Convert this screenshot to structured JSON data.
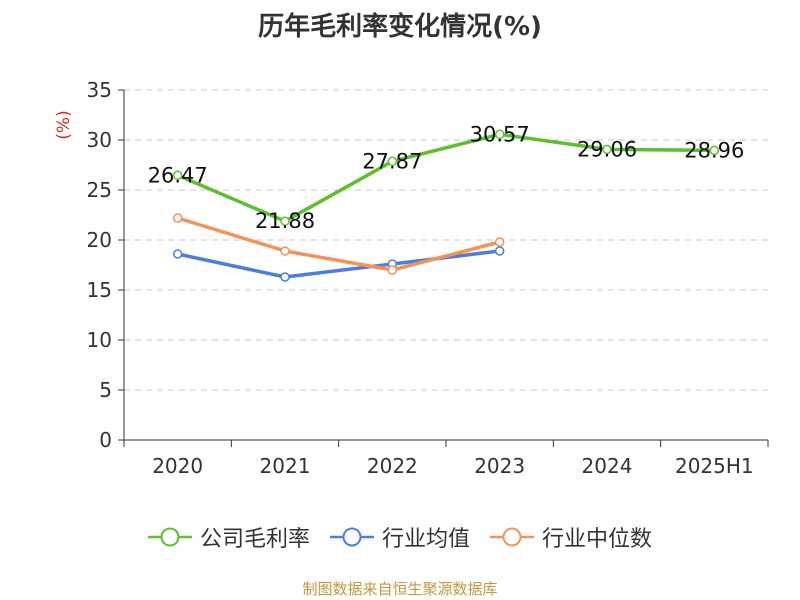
{
  "title": "历年毛利率变化情况(%)",
  "source": "制图数据来自恒生聚源数据库",
  "colors": {
    "company": "#5cc02c",
    "industry_avg": "#4c7ee0",
    "industry_median": "#f39358",
    "ylabel": "#d62728"
  },
  "chart_data": {
    "type": "line",
    "title": "历年毛利率变化情况(%)",
    "xlabel": "",
    "ylabel": "(%)",
    "ylim": [
      0,
      35
    ],
    "yticks": [
      0,
      5,
      10,
      15,
      20,
      25,
      30,
      35
    ],
    "grid": "horizontal dashed",
    "legend_position": "bottom-center",
    "categories": [
      "2020",
      "2021",
      "2022",
      "2023",
      "2024",
      "2025H1"
    ],
    "series": [
      {
        "name": "公司毛利率",
        "color_key": "company",
        "show_labels": true,
        "values": [
          26.47,
          21.88,
          27.87,
          30.57,
          29.06,
          28.96
        ],
        "labels": [
          "26.47",
          "21.88",
          "27.87",
          "30.57",
          "29.06",
          "28.96"
        ]
      },
      {
        "name": "行业均值",
        "color_key": "industry_avg",
        "show_labels": false,
        "values": [
          18.6,
          16.3,
          17.6,
          18.9,
          null,
          null
        ]
      },
      {
        "name": "行业中位数",
        "color_key": "industry_median",
        "show_labels": false,
        "values": [
          22.2,
          18.9,
          17.0,
          19.8,
          null,
          null
        ]
      }
    ]
  }
}
